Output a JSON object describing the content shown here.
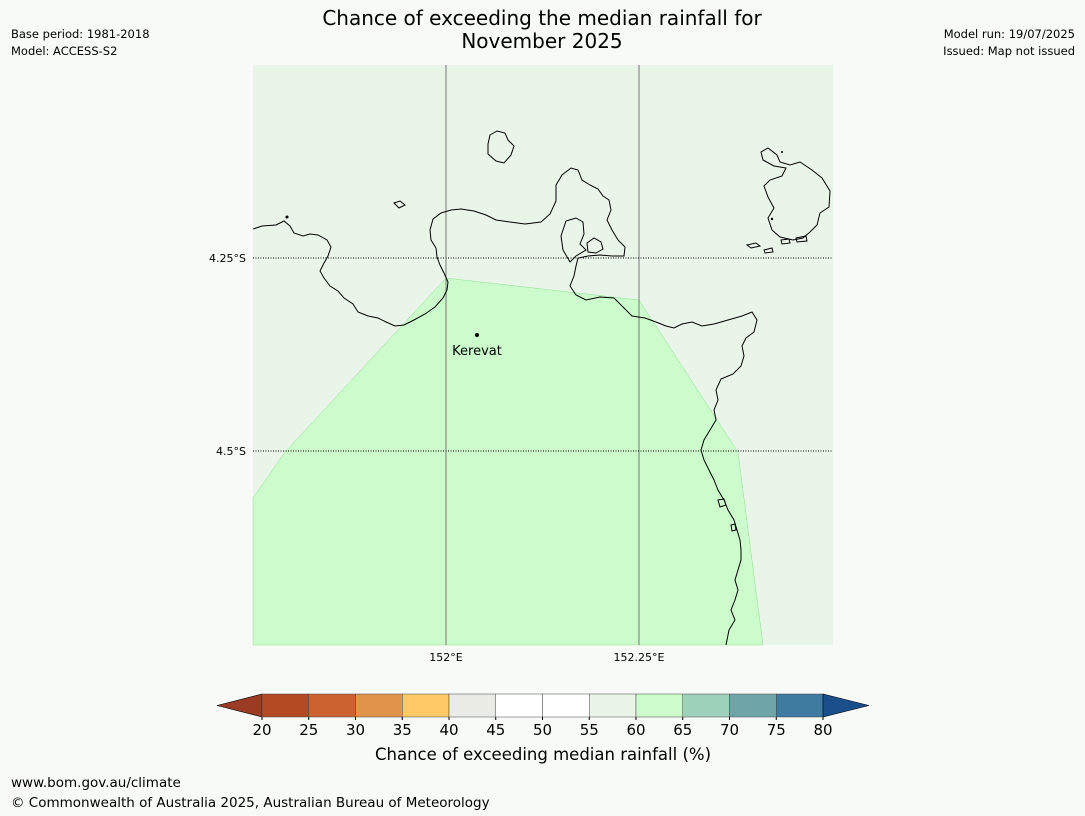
{
  "header": {
    "title_line1": "Chance of exceeding the median rainfall for",
    "title_line2": "November 2025",
    "base_period": "Base period: 1981-2018",
    "model": "Model: ACCESS-S2",
    "model_run": "Model run: 19/07/2025",
    "issued": "Issued: Map not issued"
  },
  "map": {
    "lat_labels": [
      "4.25°S",
      "4.5°S"
    ],
    "lon_labels": [
      "152°E",
      "152.25°E"
    ],
    "place": "Kerevat",
    "background_color": "#eaf5ea",
    "forecast_band": "60–65",
    "forecast_color": "#ccfccc"
  },
  "colorbar": {
    "ticks": [
      "20",
      "25",
      "30",
      "35",
      "40",
      "45",
      "50",
      "55",
      "60",
      "65",
      "70",
      "75",
      "80"
    ],
    "colors": [
      "#9b3b24",
      "#b44a24",
      "#cc6230",
      "#e2954a",
      "#fdca66",
      "#e9ebe4",
      "#ffffff",
      "#ffffff",
      "#eaf5ea",
      "#ccfccc",
      "#9dd1b9",
      "#6fa5a6",
      "#3f7aa0",
      "#1b4f8c"
    ],
    "label": "Chance of exceeding median rainfall (%)"
  },
  "footer": {
    "website": "www.bom.gov.au/climate",
    "copyright": "© Commonwealth of Australia 2025, Australian Bureau of Meteorology"
  }
}
